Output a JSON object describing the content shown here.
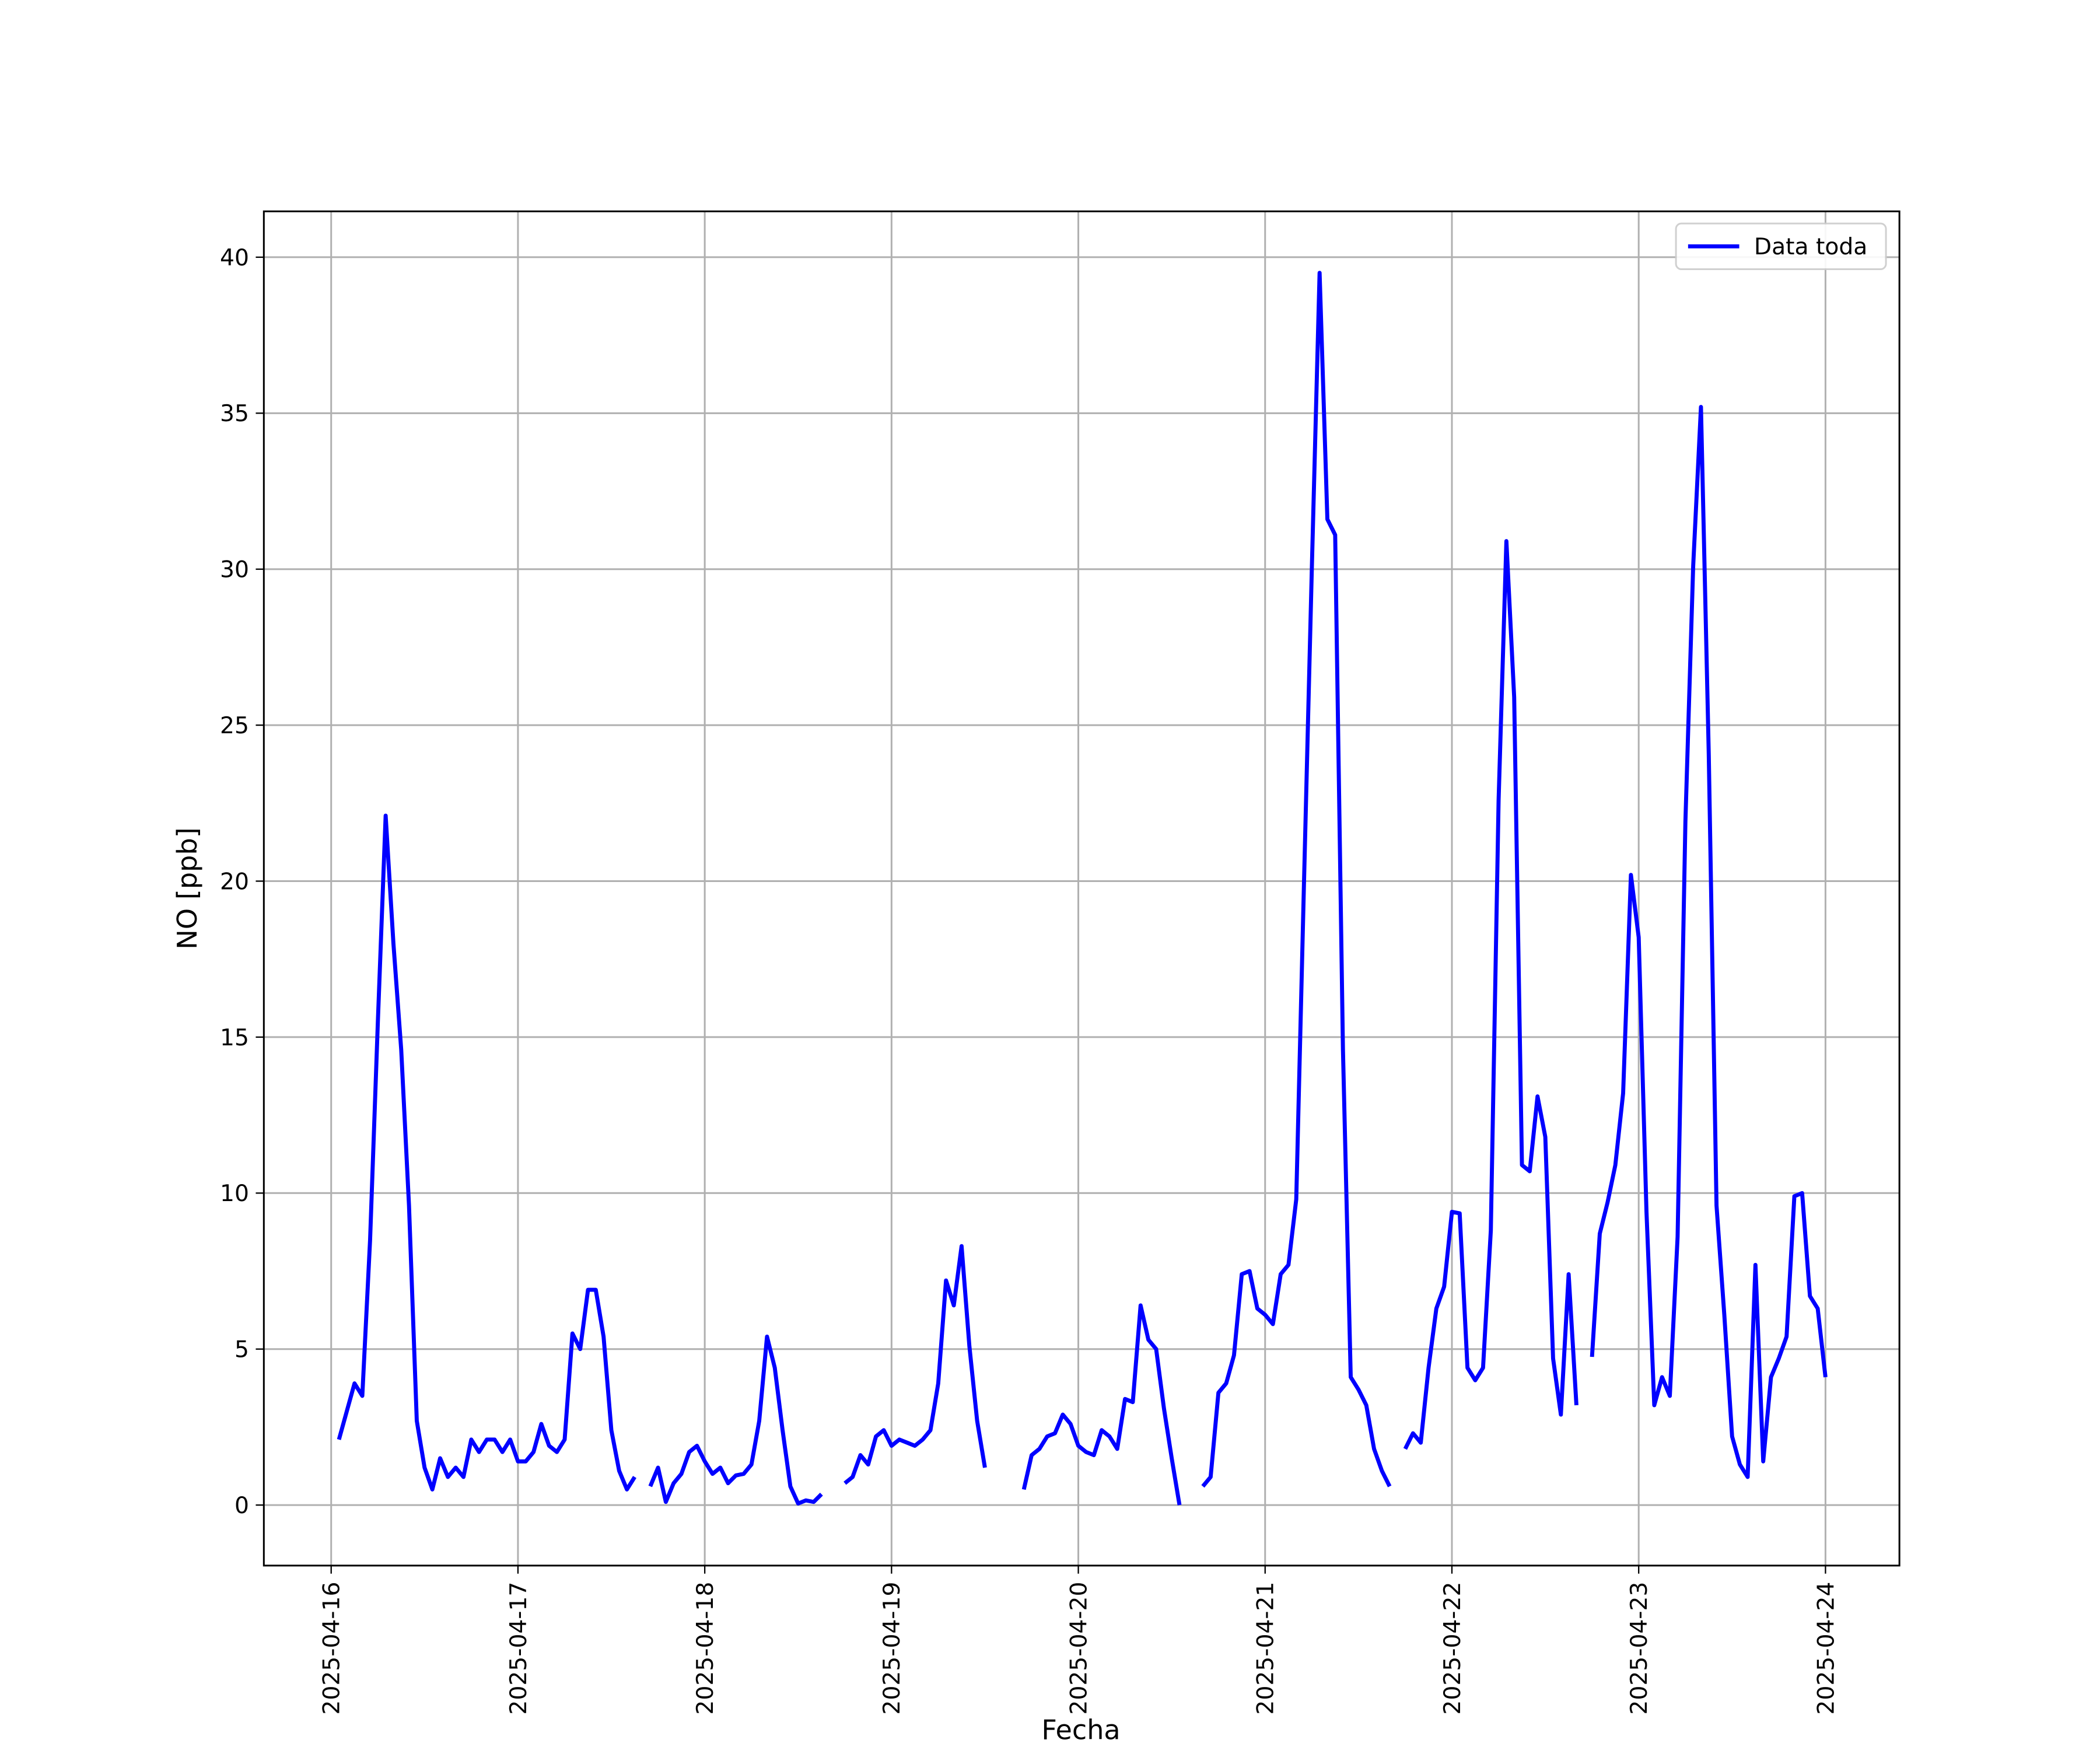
{
  "chart_data": {
    "type": "line",
    "xlabel": "Fecha",
    "ylabel": "NO [ppb]",
    "x": [
      "2025-04-16 01:00",
      "2025-04-16 02:00",
      "2025-04-16 03:00",
      "2025-04-16 04:00",
      "2025-04-16 05:00",
      "2025-04-16 06:00",
      "2025-04-16 07:00",
      "2025-04-16 08:00",
      "2025-04-16 09:00",
      "2025-04-16 10:00",
      "2025-04-16 11:00",
      "2025-04-16 12:00",
      "2025-04-16 13:00",
      "2025-04-16 14:00",
      "2025-04-16 15:00",
      "2025-04-16 16:00",
      "2025-04-16 17:00",
      "2025-04-16 18:00",
      "2025-04-16 19:00",
      "2025-04-16 20:00",
      "2025-04-16 21:00",
      "2025-04-16 22:00",
      "2025-04-16 23:00",
      "2025-04-17 00:00",
      "2025-04-17 01:00",
      "2025-04-17 02:00",
      "2025-04-17 03:00",
      "2025-04-17 04:00",
      "2025-04-17 05:00",
      "2025-04-17 06:00",
      "2025-04-17 07:00",
      "2025-04-17 08:00",
      "2025-04-17 09:00",
      "2025-04-17 10:00",
      "2025-04-17 11:00",
      "2025-04-17 12:00",
      "2025-04-17 13:00",
      "2025-04-17 14:00",
      "2025-04-17 15:00",
      "2025-04-17 16:00",
      "2025-04-17 17:00",
      "2025-04-17 18:00",
      "2025-04-17 19:00",
      "2025-04-17 20:00",
      "2025-04-17 21:00",
      "2025-04-17 22:00",
      "2025-04-17 23:00",
      "2025-04-18 00:00",
      "2025-04-18 01:00",
      "2025-04-18 02:00",
      "2025-04-18 03:00",
      "2025-04-18 04:00",
      "2025-04-18 05:00",
      "2025-04-18 06:00",
      "2025-04-18 07:00",
      "2025-04-18 08:00",
      "2025-04-18 09:00",
      "2025-04-18 10:00",
      "2025-04-18 11:00",
      "2025-04-18 12:00",
      "2025-04-18 13:00",
      "2025-04-18 14:00",
      "2025-04-18 15:00",
      "2025-04-18 16:00",
      "2025-04-18 17:00",
      "2025-04-18 18:00",
      "2025-04-18 19:00",
      "2025-04-18 20:00",
      "2025-04-18 21:00",
      "2025-04-18 22:00",
      "2025-04-18 23:00",
      "2025-04-19 00:00",
      "2025-04-19 01:00",
      "2025-04-19 02:00",
      "2025-04-19 03:00",
      "2025-04-19 04:00",
      "2025-04-19 05:00",
      "2025-04-19 06:00",
      "2025-04-19 07:00",
      "2025-04-19 08:00",
      "2025-04-19 09:00",
      "2025-04-19 10:00",
      "2025-04-19 11:00",
      "2025-04-19 12:00",
      "2025-04-19 13:00",
      "2025-04-19 14:00",
      "2025-04-19 15:00",
      "2025-04-19 16:00",
      "2025-04-19 17:00",
      "2025-04-19 18:00",
      "2025-04-19 19:00",
      "2025-04-19 20:00",
      "2025-04-19 21:00",
      "2025-04-19 22:00",
      "2025-04-19 23:00",
      "2025-04-20 00:00",
      "2025-04-20 01:00",
      "2025-04-20 02:00",
      "2025-04-20 03:00",
      "2025-04-20 04:00",
      "2025-04-20 05:00",
      "2025-04-20 06:00",
      "2025-04-20 07:00",
      "2025-04-20 08:00",
      "2025-04-20 09:00",
      "2025-04-20 10:00",
      "2025-04-20 11:00",
      "2025-04-20 12:00",
      "2025-04-20 13:00",
      "2025-04-20 14:00",
      "2025-04-20 15:00",
      "2025-04-20 16:00",
      "2025-04-20 17:00",
      "2025-04-20 18:00",
      "2025-04-20 19:00",
      "2025-04-20 20:00",
      "2025-04-20 21:00",
      "2025-04-20 22:00",
      "2025-04-20 23:00",
      "2025-04-21 00:00",
      "2025-04-21 01:00",
      "2025-04-21 02:00",
      "2025-04-21 03:00",
      "2025-04-21 04:00",
      "2025-04-21 05:00",
      "2025-04-21 06:00",
      "2025-04-21 07:00",
      "2025-04-21 08:00",
      "2025-04-21 09:00",
      "2025-04-21 10:00",
      "2025-04-21 11:00",
      "2025-04-21 12:00",
      "2025-04-21 13:00",
      "2025-04-21 14:00",
      "2025-04-21 15:00",
      "2025-04-21 16:00",
      "2025-04-21 17:00",
      "2025-04-21 18:00",
      "2025-04-21 19:00",
      "2025-04-21 20:00",
      "2025-04-21 21:00",
      "2025-04-21 22:00",
      "2025-04-21 23:00",
      "2025-04-22 00:00",
      "2025-04-22 01:00",
      "2025-04-22 02:00",
      "2025-04-22 03:00",
      "2025-04-22 04:00",
      "2025-04-22 05:00",
      "2025-04-22 06:00",
      "2025-04-22 07:00",
      "2025-04-22 08:00",
      "2025-04-22 09:00",
      "2025-04-22 10:00",
      "2025-04-22 11:00",
      "2025-04-22 12:00",
      "2025-04-22 13:00",
      "2025-04-22 14:00",
      "2025-04-22 15:00",
      "2025-04-22 16:00",
      "2025-04-22 17:00",
      "2025-04-22 18:00",
      "2025-04-22 19:00",
      "2025-04-22 20:00",
      "2025-04-22 21:00",
      "2025-04-22 22:00",
      "2025-04-22 23:00",
      "2025-04-23 00:00",
      "2025-04-23 01:00",
      "2025-04-23 02:00",
      "2025-04-23 03:00",
      "2025-04-23 04:00",
      "2025-04-23 05:00",
      "2025-04-23 06:00",
      "2025-04-23 07:00",
      "2025-04-23 08:00",
      "2025-04-23 09:00",
      "2025-04-23 10:00",
      "2025-04-23 11:00",
      "2025-04-23 12:00",
      "2025-04-23 13:00",
      "2025-04-23 14:00",
      "2025-04-23 15:00",
      "2025-04-23 16:00",
      "2025-04-23 17:00",
      "2025-04-23 18:00",
      "2025-04-23 19:00",
      "2025-04-23 20:00",
      "2025-04-23 21:00",
      "2025-04-23 22:00",
      "2025-04-23 23:00",
      "2025-04-24 00:00"
    ],
    "series": [
      {
        "name": "Data toda",
        "color": "#0000ff",
        "values": [
          2.1,
          3.0,
          3.9,
          3.5,
          8.5,
          15.5,
          22.1,
          18.0,
          14.6,
          9.6,
          2.7,
          1.2,
          0.5,
          1.5,
          0.9,
          1.2,
          0.9,
          2.1,
          1.7,
          2.1,
          2.1,
          1.7,
          2.1,
          1.4,
          1.4,
          1.7,
          2.6,
          1.9,
          1.7,
          2.1,
          5.5,
          5.0,
          6.9,
          6.9,
          5.4,
          2.4,
          1.1,
          0.5,
          0.9,
          null,
          0.6,
          1.2,
          0.1,
          0.7,
          1.0,
          1.7,
          1.9,
          1.4,
          1.0,
          1.2,
          0.7,
          0.95,
          1.0,
          1.3,
          2.7,
          5.4,
          4.4,
          2.4,
          0.6,
          0.05,
          0.15,
          0.1,
          0.35,
          null,
          null,
          0.7,
          0.9,
          1.6,
          1.3,
          2.2,
          2.4,
          1.9,
          2.1,
          2.0,
          1.9,
          2.1,
          2.4,
          3.9,
          7.2,
          6.4,
          8.3,
          5.1,
          2.7,
          1.2,
          null,
          null,
          null,
          null,
          0.5,
          1.6,
          1.8,
          2.2,
          2.3,
          2.9,
          2.6,
          1.9,
          1.7,
          1.6,
          2.4,
          2.2,
          1.8,
          3.4,
          3.3,
          6.4,
          5.3,
          5.0,
          3.1,
          1.5,
          0.0,
          null,
          null,
          0.6,
          0.9,
          3.6,
          3.9,
          4.8,
          7.4,
          7.5,
          6.3,
          6.1,
          5.8,
          7.4,
          7.7,
          9.8,
          20.0,
          30.0,
          39.5,
          31.6,
          31.1,
          14.6,
          4.1,
          3.7,
          3.2,
          1.8,
          1.1,
          0.6,
          null,
          1.8,
          2.3,
          2.0,
          4.4,
          6.3,
          7.0,
          9.4,
          9.35,
          4.4,
          4.0,
          4.4,
          8.8,
          22.6,
          30.9,
          25.9,
          10.9,
          10.7,
          13.1,
          11.8,
          4.7,
          2.9,
          7.4,
          3.2,
          null,
          4.75,
          8.7,
          9.7,
          10.9,
          13.2,
          20.2,
          18.2,
          9.4,
          3.2,
          4.1,
          3.5,
          8.6,
          21.9,
          30.1,
          35.2,
          24.1,
          9.6,
          6.1,
          2.2,
          1.3,
          0.9,
          7.7,
          1.4,
          4.1,
          4.7,
          5.4,
          9.9,
          10.0,
          6.7,
          6.3,
          4.1
        ]
      }
    ],
    "xlim": [
      "2025-04-15 15:21",
      "2025-04-24 09:30"
    ],
    "xticks": [
      "2025-04-16",
      "2025-04-17",
      "2025-04-18",
      "2025-04-19",
      "2025-04-20",
      "2025-04-21",
      "2025-04-22",
      "2025-04-23",
      "2025-04-24"
    ],
    "ylim": [
      -1.94,
      41.47
    ],
    "yticks": [
      0,
      5,
      10,
      15,
      20,
      25,
      30,
      35,
      40
    ],
    "grid": true,
    "legend": "upper right"
  }
}
